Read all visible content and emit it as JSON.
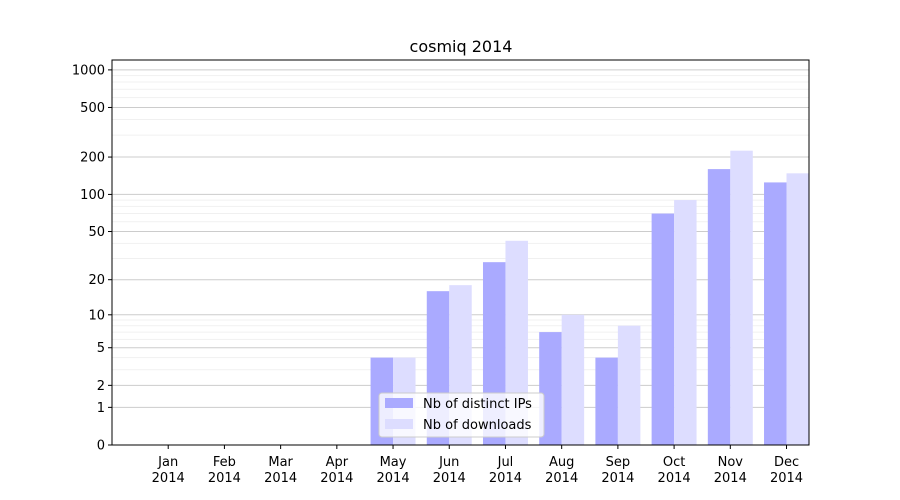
{
  "chart_data": {
    "type": "bar",
    "title": "cosmiq 2014",
    "xlabel": "",
    "ylabel": "",
    "yscale": "log1p",
    "ylim": [
      0,
      1200
    ],
    "yticks": [
      0,
      1,
      2,
      5,
      10,
      20,
      50,
      100,
      200,
      500,
      1000
    ],
    "ytick_labels": [
      "0",
      "1",
      "2",
      "5",
      "10",
      "20",
      "50",
      "100",
      "200",
      "500",
      "1000"
    ],
    "grid": "horizontal",
    "legend_position": "bottom-center",
    "categories": [
      "Jan 2014",
      "Feb 2014",
      "Mar 2014",
      "Apr 2014",
      "May 2014",
      "Jun 2014",
      "Jul 2014",
      "Aug 2014",
      "Sep 2014",
      "Oct 2014",
      "Nov 2014",
      "Dec 2014"
    ],
    "category_lines": [
      [
        "Jan",
        "2014"
      ],
      [
        "Feb",
        "2014"
      ],
      [
        "Mar",
        "2014"
      ],
      [
        "Apr",
        "2014"
      ],
      [
        "May",
        "2014"
      ],
      [
        "Jun",
        "2014"
      ],
      [
        "Jul",
        "2014"
      ],
      [
        "Aug",
        "2014"
      ],
      [
        "Sep",
        "2014"
      ],
      [
        "Oct",
        "2014"
      ],
      [
        "Nov",
        "2014"
      ],
      [
        "Dec",
        "2014"
      ]
    ],
    "series": [
      {
        "name": "Nb of distinct IPs",
        "color": "#aaaaff",
        "values": [
          0,
          0,
          0,
          0,
          4,
          16,
          28,
          7,
          4,
          70,
          160,
          125
        ]
      },
      {
        "name": "Nb of downloads",
        "color": "#ddddff",
        "values": [
          0,
          0,
          0,
          0,
          4,
          18,
          42,
          10,
          8,
          90,
          225,
          148
        ]
      }
    ]
  }
}
